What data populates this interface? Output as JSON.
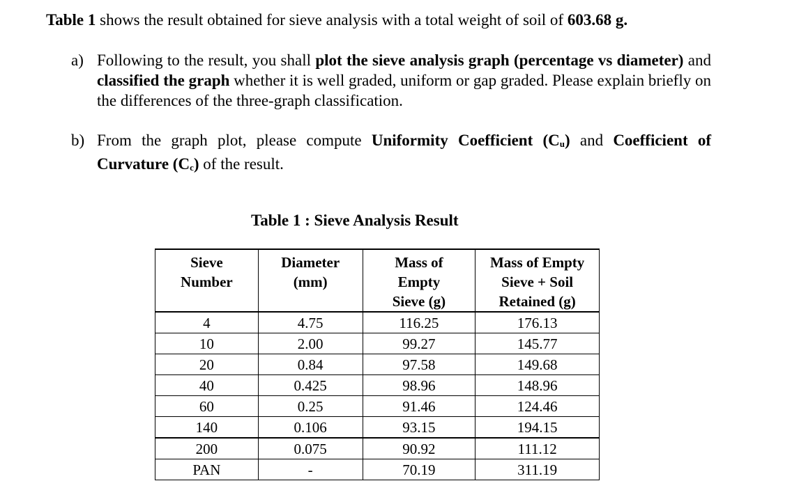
{
  "intro": {
    "lead_bold": "Table 1",
    "text": " shows the result obtained for sieve analysis with a total weight of soil of ",
    "weight_bold": "603.68 g."
  },
  "questions": [
    {
      "marker": "a)",
      "parts": {
        "t1": "Following to the result, you shall ",
        "b1": "plot the sieve analysis graph (percentage vs diameter)",
        "t2": " and ",
        "b2": "classified the graph",
        "t3": " whether it is well graded, uniform or gap graded. Please explain briefly on the differences of the three-graph classification."
      }
    },
    {
      "marker": "b)",
      "parts": {
        "t1": "From the graph plot, please compute ",
        "b1": "Uniformity Coefficient (C",
        "b1_sub": "u",
        "b1_end": ")",
        "t2": " and ",
        "b2": "Coefficient of Curvature (C",
        "b2_sub": "c",
        "b2_end": ")",
        "t3": " of the result."
      }
    }
  ],
  "table": {
    "title": "Table 1 : Sieve Analysis Result",
    "headers": [
      [
        "Sieve",
        "Number"
      ],
      [
        "Diameter",
        "(mm)"
      ],
      [
        "Mass of",
        "Empty",
        "Sieve (g)"
      ],
      [
        "Mass of Empty",
        "Sieve + Soil",
        "Retained (g)"
      ]
    ],
    "rows": [
      [
        "4",
        "4.75",
        "116.25",
        "176.13"
      ],
      [
        "10",
        "2.00",
        "99.27",
        "145.77"
      ],
      [
        "20",
        "0.84",
        "97.58",
        "149.68"
      ],
      [
        "40",
        "0.425",
        "98.96",
        "148.96"
      ],
      [
        "60",
        "0.25",
        "91.46",
        "124.46"
      ],
      [
        "140",
        "0.106",
        "93.15",
        "194.15"
      ],
      [
        "200",
        "0.075",
        "90.92",
        "111.12"
      ],
      [
        "PAN",
        "-",
        "70.19",
        "311.19"
      ]
    ]
  }
}
